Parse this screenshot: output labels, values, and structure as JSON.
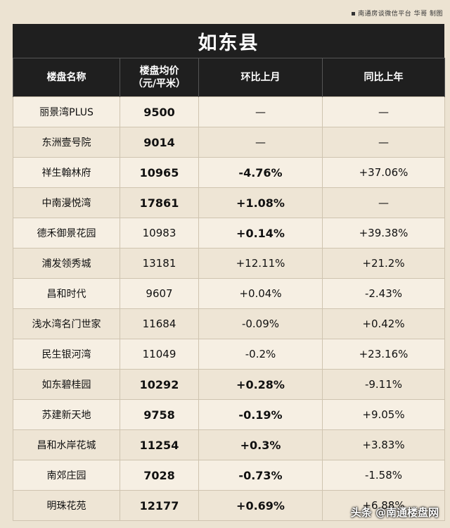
{
  "credit": "南通房谈微信平台 华哥 制图",
  "title": "如东县",
  "headers": {
    "name": "楼盘名称",
    "price_line1": "楼盘均价",
    "price_line2": "（元/平米）",
    "mom": "环比上月",
    "yoy": "同比上年"
  },
  "rows": [
    {
      "name": "丽景湾PLUS",
      "price": "9500",
      "mom": "—",
      "yoy": "—"
    },
    {
      "name": "东洲壹号院",
      "price": "9014",
      "mom": "—",
      "yoy": "—"
    },
    {
      "name": "祥生翰林府",
      "price": "10965",
      "mom": "-4.76%",
      "yoy": "+37.06%"
    },
    {
      "name": "中南漫悦湾",
      "price": "17861",
      "mom": "+1.08%",
      "yoy": "—"
    },
    {
      "name": "德禾御景花园",
      "price": "10983",
      "mom": "+0.14%",
      "yoy": "+39.38%"
    },
    {
      "name": "浦发领秀城",
      "price": "13181",
      "mom": "+12.11%",
      "yoy": "+21.2%"
    },
    {
      "name": "昌和时代",
      "price": "9607",
      "mom": "+0.04%",
      "yoy": "-2.43%"
    },
    {
      "name": "浅水湾名门世家",
      "price": "11684",
      "mom": "-0.09%",
      "yoy": "+0.42%"
    },
    {
      "name": "民生银河湾",
      "price": "11049",
      "mom": "-0.2%",
      "yoy": "+23.16%"
    },
    {
      "name": "如东碧桂园",
      "price": "10292",
      "mom": "+0.28%",
      "yoy": "-9.11%"
    },
    {
      "name": "苏建新天地",
      "price": "9758",
      "mom": "-0.19%",
      "yoy": "+9.05%"
    },
    {
      "name": "昌和水岸花城",
      "price": "11254",
      "mom": "+0.3%",
      "yoy": "+3.83%"
    },
    {
      "name": "南郊庄园",
      "price": "7028",
      "mom": "-0.73%",
      "yoy": "-1.58%"
    },
    {
      "name": "明珠花苑",
      "price": "12177",
      "mom": "+0.69%",
      "yoy": "+6.88%"
    }
  ],
  "watermark": "头条 @南通楼盘网"
}
